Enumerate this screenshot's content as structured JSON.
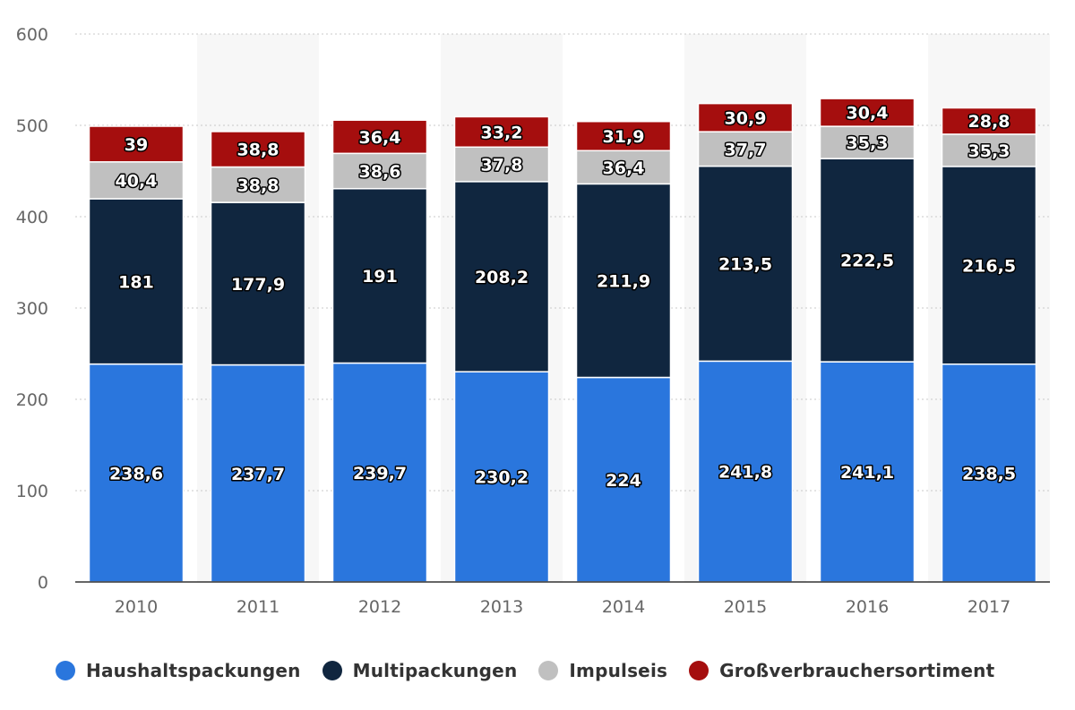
{
  "chart_data": {
    "type": "bar",
    "stacked": true,
    "categories": [
      "2010",
      "2011",
      "2012",
      "2013",
      "2014",
      "2015",
      "2016",
      "2017"
    ],
    "series": [
      {
        "name": "Haushaltspackungen",
        "color": "#2a76dd",
        "values": [
          238.6,
          237.7,
          239.7,
          230.2,
          224,
          241.8,
          241.1,
          238.5
        ],
        "labels": [
          "238,6",
          "237,7",
          "239,7",
          "230,2",
          "224",
          "241,8",
          "241,1",
          "238,5"
        ]
      },
      {
        "name": "Multipackungen",
        "color": "#10263f",
        "values": [
          181,
          177.9,
          191,
          208.2,
          211.9,
          213.5,
          222.5,
          216.5
        ],
        "labels": [
          "181",
          "177,9",
          "191",
          "208,2",
          "211,9",
          "213,5",
          "222,5",
          "216,5"
        ]
      },
      {
        "name": "Impulseis",
        "color": "#c0c0c0",
        "values": [
          40.4,
          38.8,
          38.6,
          37.8,
          36.4,
          37.7,
          35.3,
          35.3
        ],
        "labels": [
          "40,4",
          "38,8",
          "38,6",
          "37,8",
          "36,4",
          "37,7",
          "35,3",
          "35,3"
        ]
      },
      {
        "name": "Großverbrauchersortiment",
        "color": "#a50e0e",
        "values": [
          39,
          38.8,
          36.4,
          33.2,
          31.9,
          30.9,
          30.4,
          28.8
        ],
        "labels": [
          "39",
          "38,8",
          "36,4",
          "33,2",
          "31,9",
          "30,9",
          "30,4",
          "28,8"
        ]
      }
    ],
    "yticks": [
      "0",
      "100",
      "200",
      "300",
      "400",
      "500",
      "600"
    ],
    "ylim": [
      0,
      600
    ],
    "grid": true,
    "legend_position": "bottom"
  }
}
